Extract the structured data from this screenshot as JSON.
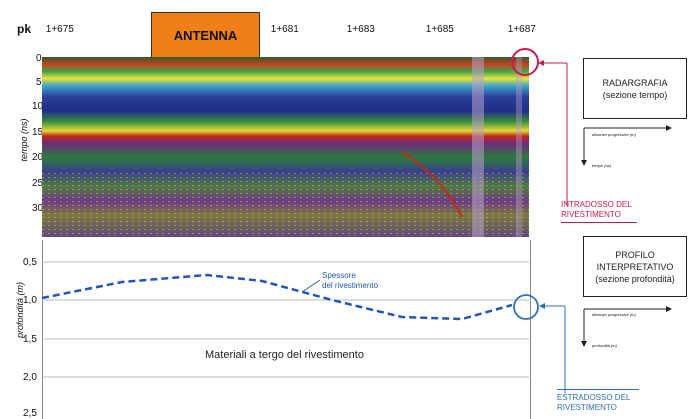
{
  "top": {
    "pk_label": "pk",
    "chainage": [
      " 1+675",
      " 1+681",
      " 1+683",
      " 1+685",
      " 1+687"
    ],
    "antenna_label": "ANTENNA",
    "antenna_color": "#f07f1a"
  },
  "radar": {
    "y_axis_label": "tempo (ns)",
    "ticks": [
      "0",
      "5",
      "10",
      "15",
      "20",
      "25",
      "30"
    ]
  },
  "profile": {
    "y_axis_label": "profondità (m)",
    "ticks": [
      "0,5",
      "1,0",
      "1,5",
      "2,0",
      "2,5"
    ],
    "line_label": "Spessore\ndel rivestimento",
    "center_text": "Materiali a tergo del rivestimento",
    "line_color": "#2255b8"
  },
  "callouts": {
    "intradosso": "INTRADOSSO DEL\nRIVESTIMENTO",
    "intradosso_color": "#d0194a",
    "estradosso": "ESTRADOSSO DEL\nRIVESTIMENTO",
    "estradosso_color": "#2f6fc0"
  },
  "sidebar": {
    "box1": "RADARGRAFIA\n(sezione tempo)",
    "axis1_x": "distanze progressive (m)",
    "axis1_y": "tempo (ns)",
    "box2": "PROFILO\nINTERPRETATIVO\n(sezione profondità)",
    "axis2_x": "distanze progressive (m)",
    "axis2_y": "profondità (m)"
  }
}
